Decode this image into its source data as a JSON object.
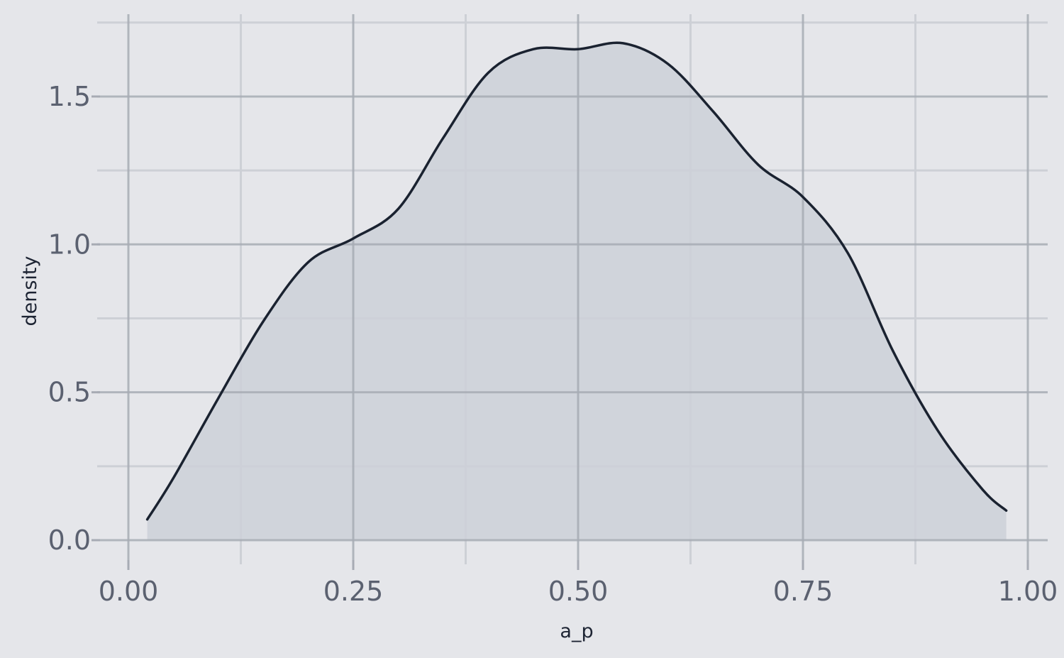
{
  "chart_data": {
    "type": "area",
    "title": "",
    "xlabel": "a_p",
    "ylabel": "density",
    "xlim": [
      0.0,
      1.0
    ],
    "ylim": [
      0.0,
      1.75
    ],
    "x_ticks": [
      0.0,
      0.25,
      0.5,
      0.75,
      1.0
    ],
    "x_tick_labels": [
      "0.00",
      "0.25",
      "0.50",
      "0.75",
      "1.00"
    ],
    "y_ticks": [
      0.0,
      0.5,
      1.0,
      1.5
    ],
    "y_tick_labels": [
      "0.0",
      "0.5",
      "1.0",
      "1.5"
    ],
    "grid": true,
    "legend": "none",
    "series": [
      {
        "x": [
          0.021,
          0.05,
          0.1,
          0.15,
          0.2,
          0.25,
          0.3,
          0.35,
          0.4,
          0.45,
          0.5,
          0.55,
          0.6,
          0.65,
          0.7,
          0.75,
          0.8,
          0.85,
          0.9,
          0.95,
          0.976
        ],
        "y": [
          0.07,
          0.21,
          0.48,
          0.74,
          0.94,
          1.02,
          1.12,
          1.36,
          1.58,
          1.66,
          1.66,
          1.68,
          1.61,
          1.45,
          1.27,
          1.16,
          0.97,
          0.64,
          0.37,
          0.17,
          0.1
        ]
      }
    ],
    "colors": {
      "background": "#e5e6ea",
      "line": "#1a2230",
      "fill": "#cdd0d8",
      "grid_major": "#a7abb4",
      "grid_minor": "#cdd0d6"
    }
  }
}
